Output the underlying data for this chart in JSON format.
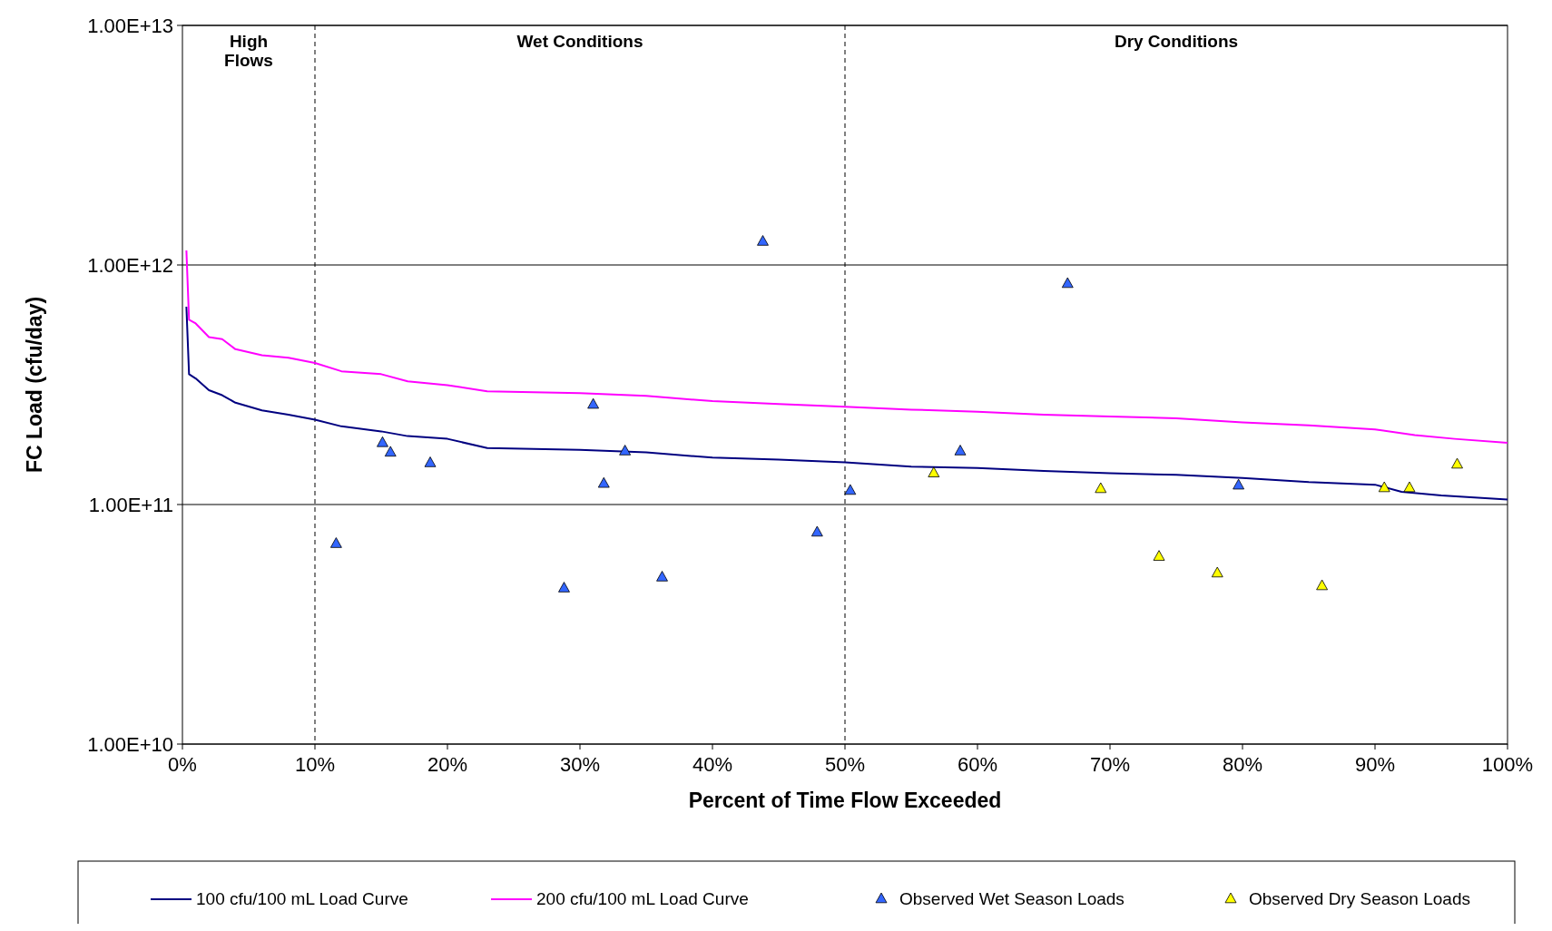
{
  "chart_data": {
    "type": "line",
    "xlabel": "Percent of Time Flow Exceeded",
    "ylabel": "FC Load (cfu/day)",
    "log": "y",
    "grid": "y",
    "legend": "bottom",
    "xlim": [
      0,
      100
    ],
    "xticks": [
      {
        "value": 0,
        "label": "0%"
      },
      {
        "value": 10,
        "label": "10%"
      },
      {
        "value": 20,
        "label": "20%"
      },
      {
        "value": 30,
        "label": "30%"
      },
      {
        "value": 40,
        "label": "40%"
      },
      {
        "value": 50,
        "label": "50%"
      },
      {
        "value": 60,
        "label": "60%"
      },
      {
        "value": 70,
        "label": "70%"
      },
      {
        "value": 80,
        "label": "80%"
      },
      {
        "value": 90,
        "label": "90%"
      },
      {
        "value": 100,
        "label": "100%"
      }
    ],
    "ylim": [
      10000000000.0,
      10000000000000.0
    ],
    "yticks": [
      {
        "value": 10000000000.0,
        "label": "1.00E+10"
      },
      {
        "value": 100000000000.0,
        "label": "1.00E+11"
      },
      {
        "value": 1000000000000.0,
        "label": "1.00E+12"
      },
      {
        "value": 10000000000000.0,
        "label": "1.00E+13"
      }
    ],
    "ref_lines": [
      {
        "axis": "x",
        "value": 10,
        "color": "#000000",
        "line_style": "dashed"
      },
      {
        "axis": "x",
        "value": 50,
        "color": "#000000",
        "line_style": "dashed"
      }
    ],
    "annotations": [
      "High Flows",
      "Wet Conditions",
      "Dry Conditions"
    ],
    "series": [
      {
        "name": "100 cfu/100  mL Load Curve",
        "color": "#000080",
        "marker": "none",
        "x": [
          0.3,
          0.5,
          1,
          2,
          3,
          4,
          6,
          8,
          10,
          12,
          15,
          17,
          20,
          23,
          30,
          35,
          40,
          45,
          50,
          55,
          60,
          65,
          70,
          75,
          80,
          85,
          90,
          92,
          95,
          100
        ],
        "values": [
          670000000000.0,
          350000000000.0,
          336000000000.0,
          300000000000.0,
          286000000000.0,
          266000000000.0,
          247000000000.0,
          237000000000.0,
          226000000000.0,
          212000000000.0,
          202000000000.0,
          193000000000.0,
          188000000000.0,
          172000000000.0,
          169000000000.0,
          165000000000.0,
          157000000000.0,
          154000000000.0,
          150000000000.0,
          144000000000.0,
          142000000000.0,
          138000000000.0,
          135000000000.0,
          133000000000.0,
          129000000000.0,
          124000000000.0,
          121000000000.0,
          113000000000.0,
          109000000000.0,
          105000000000.0
        ]
      },
      {
        "name": "200 cfu/100  mL Load Curve",
        "color": "#ff00ff",
        "marker": "none",
        "x": [
          0.3,
          0.5,
          1,
          2,
          3,
          4,
          6,
          8,
          10,
          12,
          15,
          17,
          20,
          23,
          30,
          35,
          40,
          45,
          50,
          55,
          60,
          65,
          70,
          75,
          80,
          85,
          90,
          93,
          96,
          100
        ],
        "values": [
          1150000000000.0,
          590000000000.0,
          570000000000.0,
          500000000000.0,
          490000000000.0,
          445000000000.0,
          420000000000.0,
          410000000000.0,
          390000000000.0,
          360000000000.0,
          350000000000.0,
          327000000000.0,
          315000000000.0,
          297000000000.0,
          292000000000.0,
          284000000000.0,
          270000000000.0,
          263000000000.0,
          256000000000.0,
          249000000000.0,
          244000000000.0,
          237000000000.0,
          233000000000.0,
          229000000000.0,
          220000000000.0,
          214000000000.0,
          206000000000.0,
          195000000000.0,
          188000000000.0,
          181000000000.0
        ]
      },
      {
        "name": "Observed Wet Season  Loads",
        "type": "scatter",
        "color": "#3366ff",
        "marker": "triangle",
        "x": [
          11.6,
          15.1,
          15.7,
          18.7,
          28.8,
          31.0,
          31.8,
          33.4,
          36.2,
          43.8,
          47.9,
          50.4,
          58.7,
          66.8,
          79.7
        ],
        "values": [
          69000000000.0,
          182000000000.0,
          166000000000.0,
          150000000000.0,
          45000000000.0,
          263000000000.0,
          123000000000.0,
          168000000000.0,
          50000000000.0,
          1260000000000.0,
          77000000000.0,
          115000000000.0,
          168000000000.0,
          840000000000.0,
          121000000000.0
        ]
      },
      {
        "name": "Observed Dry Season  Loads",
        "type": "scatter",
        "color": "#ffff00",
        "marker": "triangle",
        "x": [
          56.7,
          69.3,
          73.7,
          78.1,
          86.0,
          90.7,
          92.6,
          96.2
        ],
        "values": [
          136000000000.0,
          117000000000.0,
          61000000000.0,
          52000000000.0,
          46000000000.0,
          118000000000.0,
          118000000000.0,
          148000000000.0
        ]
      }
    ]
  }
}
